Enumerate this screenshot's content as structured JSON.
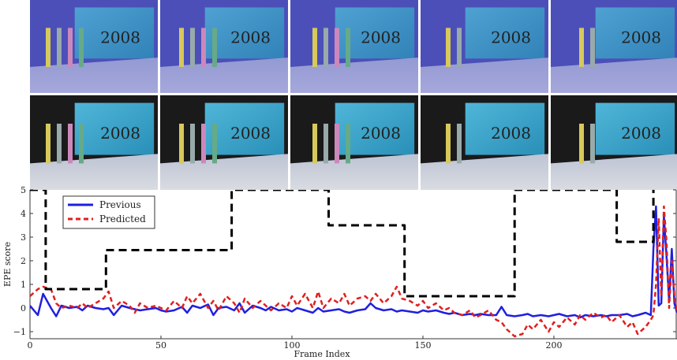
{
  "chart_data": {
    "type": "line",
    "xlabel": "Frame Index",
    "ylabel": "EPE score",
    "xlim": [
      0,
      247
    ],
    "ylim": [
      -1.3,
      5
    ],
    "xticks": [
      0,
      50,
      100,
      150,
      200
    ],
    "yticks": [
      -1,
      0,
      1,
      2,
      3,
      4,
      5
    ],
    "grid": false,
    "legend_position": "top-left",
    "series": [
      {
        "name": "Previous",
        "color": "#1f1fe0",
        "style": "solid",
        "x": [
          0,
          3,
          5,
          8,
          10,
          12,
          15,
          18,
          20,
          22,
          25,
          28,
          30,
          32,
          35,
          38,
          40,
          42,
          45,
          48,
          50,
          52,
          55,
          58,
          60,
          62,
          65,
          68,
          70,
          72,
          75,
          78,
          80,
          82,
          85,
          88,
          90,
          92,
          95,
          98,
          100,
          102,
          105,
          108,
          110,
          112,
          115,
          118,
          120,
          122,
          125,
          128,
          130,
          132,
          135,
          138,
          140,
          142,
          145,
          148,
          150,
          152,
          155,
          158,
          160,
          162,
          165,
          168,
          170,
          172,
          175,
          178,
          180,
          182,
          185,
          188,
          190,
          192,
          195,
          198,
          200,
          202,
          205,
          208,
          210,
          212,
          215,
          218,
          220,
          222,
          225,
          228,
          230,
          232,
          235,
          237,
          238,
          239,
          240,
          241,
          242,
          243,
          244,
          245,
          246,
          247
        ],
        "y": [
          0.1,
          -0.3,
          0.6,
          0.0,
          -0.35,
          0.1,
          0.0,
          0.05,
          -0.1,
          0.1,
          0.0,
          -0.05,
          0.0,
          -0.3,
          0.1,
          0.0,
          -0.05,
          -0.1,
          -0.05,
          0.0,
          -0.1,
          -0.15,
          -0.1,
          0.05,
          -0.2,
          0.1,
          0.0,
          0.15,
          -0.3,
          0.0,
          0.05,
          -0.1,
          0.2,
          -0.2,
          0.1,
          0.0,
          -0.1,
          0.05,
          -0.1,
          -0.05,
          -0.15,
          0.0,
          -0.1,
          -0.2,
          0.0,
          -0.15,
          -0.1,
          -0.05,
          -0.15,
          -0.2,
          -0.1,
          -0.05,
          0.2,
          0.0,
          -0.1,
          -0.05,
          -0.15,
          -0.1,
          -0.15,
          -0.2,
          -0.1,
          -0.15,
          -0.1,
          -0.2,
          -0.25,
          -0.2,
          -0.3,
          -0.25,
          -0.3,
          -0.25,
          -0.3,
          -0.3,
          0.05,
          -0.3,
          -0.35,
          -0.3,
          -0.25,
          -0.35,
          -0.3,
          -0.35,
          -0.3,
          -0.25,
          -0.35,
          -0.3,
          -0.4,
          -0.3,
          -0.35,
          -0.3,
          -0.35,
          -0.3,
          -0.3,
          -0.25,
          -0.35,
          -0.3,
          -0.2,
          -0.3,
          2.5,
          4.3,
          0.1,
          0.2,
          3.9,
          2.2,
          0.3,
          2.5,
          0.2,
          -0.2
        ]
      },
      {
        "name": "Predicted",
        "color": "#e01f1f",
        "style": "dashed",
        "x": [
          0,
          3,
          5,
          8,
          10,
          12,
          15,
          18,
          20,
          22,
          25,
          28,
          30,
          32,
          35,
          38,
          40,
          42,
          45,
          48,
          50,
          52,
          55,
          58,
          60,
          62,
          65,
          68,
          70,
          72,
          75,
          78,
          80,
          82,
          85,
          88,
          90,
          92,
          95,
          98,
          100,
          102,
          105,
          108,
          110,
          112,
          115,
          118,
          120,
          122,
          125,
          128,
          130,
          132,
          135,
          138,
          140,
          142,
          145,
          148,
          150,
          152,
          155,
          158,
          160,
          162,
          165,
          168,
          170,
          172,
          175,
          178,
          180,
          182,
          185,
          188,
          190,
          192,
          195,
          198,
          200,
          202,
          205,
          208,
          210,
          212,
          215,
          218,
          220,
          222,
          225,
          228,
          230,
          232,
          235,
          237,
          238,
          239,
          240,
          241,
          242,
          243,
          244,
          245,
          246,
          247
        ],
        "y": [
          0.5,
          0.8,
          0.9,
          0.8,
          0.2,
          0.0,
          0.1,
          0.0,
          0.2,
          0.0,
          0.2,
          0.4,
          0.7,
          0.0,
          0.3,
          0.1,
          -0.2,
          0.2,
          0.0,
          0.1,
          0.0,
          -0.1,
          0.3,
          0.0,
          0.5,
          0.2,
          0.6,
          0.0,
          0.3,
          -0.1,
          0.5,
          0.2,
          -0.2,
          0.4,
          0.0,
          0.3,
          0.1,
          -0.1,
          0.2,
          0.0,
          0.5,
          0.1,
          0.6,
          0.0,
          0.7,
          0.0,
          0.4,
          0.2,
          0.6,
          0.1,
          0.4,
          0.5,
          0.3,
          0.6,
          0.2,
          0.5,
          0.9,
          0.4,
          0.3,
          0.1,
          0.3,
          0.0,
          0.2,
          -0.1,
          0.0,
          -0.2,
          -0.3,
          -0.1,
          -0.4,
          -0.3,
          -0.1,
          -0.5,
          -0.6,
          -0.9,
          -1.2,
          -1.1,
          -0.7,
          -0.9,
          -0.5,
          -1.0,
          -0.6,
          -0.8,
          -0.4,
          -0.7,
          -0.3,
          -0.5,
          -0.2,
          -0.4,
          -0.3,
          -0.6,
          -0.3,
          -0.8,
          -0.6,
          -1.1,
          -0.8,
          -0.5,
          -0.3,
          1.0,
          3.8,
          0.5,
          4.3,
          2.8,
          0.0,
          2.0,
          0.5,
          -0.1
        ]
      },
      {
        "name": "",
        "color": "#000000",
        "style": "dashed",
        "step": true,
        "x": [
          0,
          6,
          6,
          29,
          29,
          77,
          77,
          114,
          114,
          143,
          143,
          185,
          185,
          224,
          224,
          238,
          238
        ],
        "y": [
          5,
          5,
          0.8,
          0.8,
          2.45,
          2.45,
          5,
          5,
          3.5,
          3.5,
          0.5,
          0.5,
          5,
          5,
          2.8,
          2.8,
          5
        ]
      }
    ]
  },
  "frames": {
    "row1": [
      {
        "caption": "2008"
      },
      {
        "caption": "2008"
      },
      {
        "caption": "2008"
      },
      {
        "caption": "2008"
      },
      {
        "caption": "2008"
      }
    ],
    "row2": [
      {
        "caption": "2008"
      },
      {
        "caption": "2008"
      },
      {
        "caption": "2008"
      },
      {
        "caption": "2008"
      },
      {
        "caption": "2008"
      }
    ]
  }
}
